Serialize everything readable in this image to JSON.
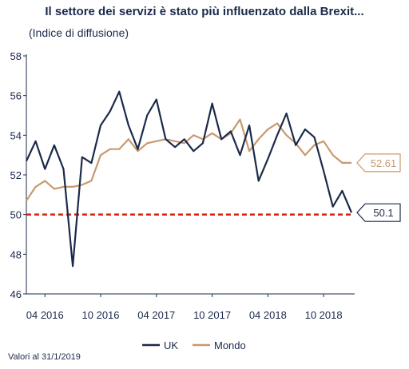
{
  "header": {
    "title": "Il settore dei servizi è stato più influenzato dalla Brexit...",
    "subtitle": "(Indice di diffusione)"
  },
  "footer": {
    "note": "Valori al 31/1/2019"
  },
  "colors": {
    "uk": "#1b2a4a",
    "mondo": "#c8996e",
    "threshold": "#d91e18",
    "axis": "#1b2a4a"
  },
  "chart_data": {
    "type": "line",
    "title": "Il settore dei servizi è stato più influenzato dalla Brexit...",
    "ylabel": "(Indice di diffusione)",
    "ylim": [
      46,
      58
    ],
    "yticks": [
      46,
      48,
      50,
      52,
      54,
      56,
      58
    ],
    "x": [
      "2016-02",
      "2016-03",
      "2016-04",
      "2016-05",
      "2016-06",
      "2016-07",
      "2016-08",
      "2016-09",
      "2016-10",
      "2016-11",
      "2016-12",
      "2017-01",
      "2017-02",
      "2017-03",
      "2017-04",
      "2017-05",
      "2017-06",
      "2017-07",
      "2017-08",
      "2017-09",
      "2017-10",
      "2017-11",
      "2017-12",
      "2018-01",
      "2018-02",
      "2018-03",
      "2018-04",
      "2018-05",
      "2018-06",
      "2018-07",
      "2018-08",
      "2018-09",
      "2018-10",
      "2018-11",
      "2018-12",
      "2019-01"
    ],
    "xtick_labels": [
      {
        "label": "04 2016",
        "at": "2016-04"
      },
      {
        "label": "10 2016",
        "at": "2016-10"
      },
      {
        "label": "04 2017",
        "at": "2017-04"
      },
      {
        "label": "10 2017",
        "at": "2017-10"
      },
      {
        "label": "04 2018",
        "at": "2018-04"
      },
      {
        "label": "10 2018",
        "at": "2018-10"
      }
    ],
    "series": [
      {
        "name": "UK",
        "color": "#1b2a4a",
        "values": [
          52.7,
          53.7,
          52.3,
          53.5,
          52.3,
          47.4,
          52.9,
          52.6,
          54.5,
          55.2,
          56.2,
          54.5,
          53.3,
          55.0,
          55.8,
          53.8,
          53.4,
          53.8,
          53.2,
          53.6,
          55.6,
          53.8,
          54.2,
          53.0,
          54.5,
          51.7,
          52.8,
          54.0,
          55.1,
          53.5,
          54.3,
          53.9,
          52.2,
          50.4,
          51.2,
          50.1
        ]
      },
      {
        "name": "Mondo",
        "color": "#c8996e",
        "values": [
          50.7,
          51.4,
          51.7,
          51.3,
          51.4,
          51.4,
          51.5,
          51.7,
          53.0,
          53.3,
          53.3,
          53.8,
          53.2,
          53.6,
          53.7,
          53.8,
          53.7,
          53.6,
          54.0,
          53.8,
          54.1,
          53.8,
          54.1,
          54.8,
          53.2,
          53.8,
          54.3,
          54.6,
          54.0,
          53.6,
          53.0,
          53.5,
          53.7,
          53.0,
          52.61,
          52.61
        ]
      }
    ],
    "threshold": {
      "value": 50,
      "style": "dashed"
    },
    "callouts": [
      {
        "series": "Mondo",
        "label": "52.61",
        "value": 52.61
      },
      {
        "series": "UK",
        "label": "50.1",
        "value": 50.1
      }
    ],
    "legend": {
      "placement": "bottom-center",
      "entries": [
        "UK",
        "Mondo"
      ]
    },
    "grid": false
  }
}
